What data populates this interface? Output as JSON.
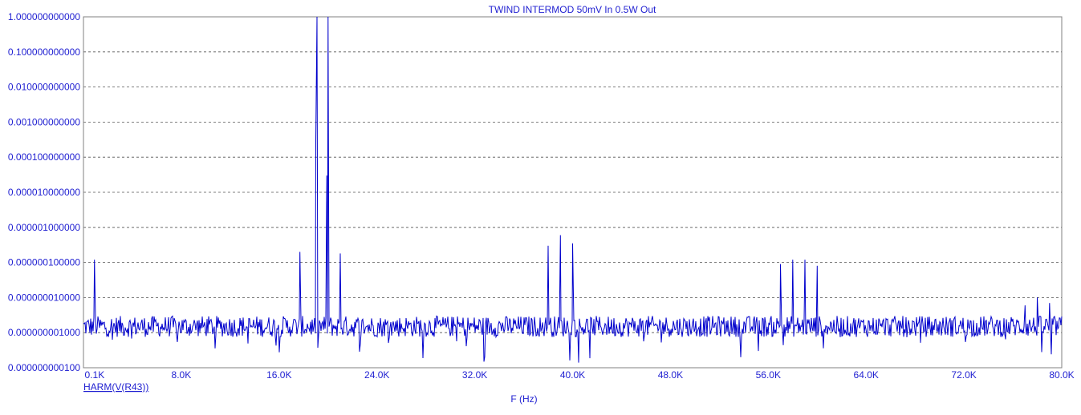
{
  "chart_data": {
    "type": "line",
    "title": "TWIND INTERMOD 50mV In 0.5W Out",
    "xlabel": "F (Hz)",
    "ylabel": "",
    "xlim": [
      0,
      80000
    ],
    "ylim": [
      1e-10,
      1
    ],
    "y_scale": "log",
    "grid": true,
    "legend_position": "bottom-left",
    "x_ticks": [
      {
        "value": 100,
        "label": "0.1K"
      },
      {
        "value": 8000,
        "label": "8.0K"
      },
      {
        "value": 16000,
        "label": "16.0K"
      },
      {
        "value": 24000,
        "label": "24.0K"
      },
      {
        "value": 32000,
        "label": "32.0K"
      },
      {
        "value": 40000,
        "label": "40.0K"
      },
      {
        "value": 48000,
        "label": "48.0K"
      },
      {
        "value": 56000,
        "label": "56.0K"
      },
      {
        "value": 64000,
        "label": "64.0K"
      },
      {
        "value": 72000,
        "label": "72.0K"
      },
      {
        "value": 80000,
        "label": "80.0K"
      }
    ],
    "y_ticks": [
      {
        "value": 1,
        "label": "1.000000000000"
      },
      {
        "value": 0.1,
        "label": "0.100000000000"
      },
      {
        "value": 0.01,
        "label": "0.010000000000"
      },
      {
        "value": 0.001,
        "label": "0.001000000000"
      },
      {
        "value": 0.0001,
        "label": "0.000100000000"
      },
      {
        "value": 1e-05,
        "label": "0.000010000000"
      },
      {
        "value": 1e-06,
        "label": "0.000001000000"
      },
      {
        "value": 1e-07,
        "label": "0.000000100000"
      },
      {
        "value": 1e-08,
        "label": "0.000000010000"
      },
      {
        "value": 1e-09,
        "label": "0.000000001000"
      },
      {
        "value": 1e-10,
        "label": "0.000000000100"
      }
    ],
    "series": [
      {
        "name": "HARM(V(R43))",
        "color": "#0000cc",
        "noise_floor": 1.5e-09,
        "peaks": [
          {
            "x": 900,
            "y": 1.2e-07
          },
          {
            "x": 17700,
            "y": 2e-07
          },
          {
            "x": 19000,
            "y": 0.0003
          },
          {
            "x": 19100,
            "y": 1.0
          },
          {
            "x": 19900,
            "y": 3e-05
          },
          {
            "x": 20000,
            "y": 1.0
          },
          {
            "x": 21000,
            "y": 1.8e-07
          },
          {
            "x": 38000,
            "y": 3e-07
          },
          {
            "x": 39000,
            "y": 6e-07
          },
          {
            "x": 40000,
            "y": 3.5e-07
          },
          {
            "x": 57000,
            "y": 9e-08
          },
          {
            "x": 58000,
            "y": 1.2e-07
          },
          {
            "x": 59000,
            "y": 1.2e-07
          },
          {
            "x": 60000,
            "y": 8e-08
          },
          {
            "x": 77000,
            "y": 6e-09
          },
          {
            "x": 78000,
            "y": 1e-08
          },
          {
            "x": 79000,
            "y": 7e-09
          }
        ]
      }
    ]
  }
}
